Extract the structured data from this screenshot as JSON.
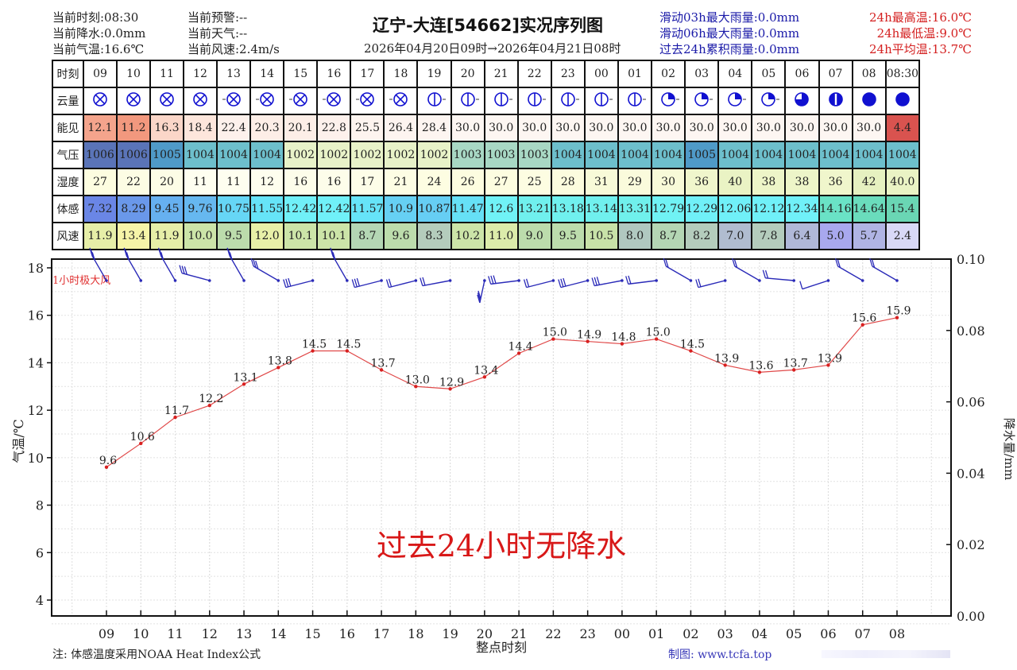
{
  "header": {
    "left": [
      {
        "label": "当前时刻:08:30"
      },
      {
        "label": "当前降水:0.0mm"
      },
      {
        "label": "当前气温:16.6℃"
      }
    ],
    "mid": [
      {
        "label": "当前预警:--"
      },
      {
        "label": "当前天气:--"
      },
      {
        "label": "当前风速:2.4m/s"
      }
    ],
    "title": "辽宁-大连[54662]实况序列图",
    "subtitle": "2026年04月20日09时→2026年04月21日08时",
    "rain_stats": [
      {
        "label": "滑动03h最大雨量:0.0mm"
      },
      {
        "label": "滑动06h最大雨量:0.0mm"
      },
      {
        "label": "过去24h累积雨量:0.0mm"
      }
    ],
    "temp_stats": [
      {
        "label": "24h最高温:16.0℃"
      },
      {
        "label": "24h最低温:9.0℃"
      },
      {
        "label": "24h平均温:13.7℃"
      }
    ]
  },
  "table": {
    "row_labels": [
      "时刻",
      "云量",
      "能见",
      "气压",
      "湿度",
      "体感",
      "风速"
    ],
    "hours": [
      "09",
      "10",
      "11",
      "12",
      "13",
      "14",
      "15",
      "16",
      "17",
      "18",
      "19",
      "20",
      "21",
      "22",
      "23",
      "00",
      "01",
      "02",
      "03",
      "04",
      "05",
      "06",
      "07",
      "08",
      "08:30"
    ],
    "cloud": [
      "overcast-icon",
      "overcast-icon",
      "overcast-icon",
      "overcast-icon",
      "overcast-icon",
      "overcast-icon",
      "overcast-icon",
      "overcast-icon",
      "overcast-icon",
      "overcast-icon",
      "half-cloud-icon",
      "half-cloud-icon",
      "half-cloud-icon",
      "half-cloud-icon",
      "half-cloud-icon",
      "half-cloud-icon",
      "half-cloud-icon",
      "quarter-cloud-icon",
      "quarter-cloud-icon",
      "quarter-cloud-icon",
      "quarter-cloud-icon",
      "three-quarter-cloud-icon",
      "half-filled-cloud-icon",
      "full-cloud-icon",
      "full-cloud-icon"
    ],
    "visibility": [
      "12.1",
      "11.2",
      "16.3",
      "18.4",
      "22.4",
      "20.3",
      "20.1",
      "22.8",
      "25.5",
      "26.4",
      "28.4",
      "30.0",
      "30.0",
      "30.0",
      "30.0",
      "30.0",
      "30.0",
      "30.0",
      "30.0",
      "30.0",
      "30.0",
      "30.0",
      "30.0",
      "30.0",
      "4.4"
    ],
    "visibility_colors": [
      "#f4a48c",
      "#f2987e",
      "#fbd6c8",
      "#fde6dc",
      "#fdf1ec",
      "#fdeee7",
      "#fdeee7",
      "#fdf1ec",
      "#fdf4ef",
      "#fdf4f0",
      "#fdf5f1",
      "#fdf6f2",
      "#fdf6f2",
      "#fdf6f2",
      "#fdf6f2",
      "#fdf6f2",
      "#fdf6f2",
      "#fdf6f2",
      "#fdf6f2",
      "#fdf6f2",
      "#fdf6f2",
      "#fdf6f2",
      "#fdf6f2",
      "#fdf6f2",
      "#d9534f"
    ],
    "pressure": [
      "1006",
      "1006",
      "1005",
      "1004",
      "1004",
      "1004",
      "1002",
      "1002",
      "1002",
      "1002",
      "1002",
      "1003",
      "1003",
      "1003",
      "1004",
      "1004",
      "1004",
      "1004",
      "1005",
      "1004",
      "1004",
      "1004",
      "1004",
      "1004",
      "1004"
    ],
    "pressure_colors": [
      "#5a74b8",
      "#5a74b8",
      "#4f9ac8",
      "#6dbfcc",
      "#6dbfcc",
      "#6dbfcc",
      "#e8f2c8",
      "#e8f2c8",
      "#e8f2c8",
      "#e8f2c8",
      "#e8f2c8",
      "#a8d8c4",
      "#a8d8c4",
      "#a8d8c4",
      "#6dbfcc",
      "#6dbfcc",
      "#6dbfcc",
      "#6dbfcc",
      "#4f9ac8",
      "#6dbfcc",
      "#6dbfcc",
      "#6dbfcc",
      "#6dbfcc",
      "#6dbfcc",
      "#6dbfcc"
    ],
    "humidity": [
      "27",
      "22",
      "20",
      "11",
      "11",
      "12",
      "16",
      "16",
      "17",
      "21",
      "24",
      "26",
      "27",
      "25",
      "28",
      "31",
      "29",
      "30",
      "36",
      "40",
      "38",
      "38",
      "36",
      "42",
      "40.0"
    ],
    "humidity_colors": [
      "#fdfde0",
      "#fdfde4",
      "#fdfde6",
      "#fefef0",
      "#fefef0",
      "#fefeee",
      "#fdfdea",
      "#fdfdea",
      "#fdfde8",
      "#fdfde4",
      "#fdfde2",
      "#fdfde0",
      "#fdfde0",
      "#fdfde2",
      "#fcfcde",
      "#f8fad8",
      "#fafbdc",
      "#f8fad8",
      "#f0f6cc",
      "#eaf3c4",
      "#edf5c8",
      "#edf5c8",
      "#f0f6cc",
      "#e6f1c0",
      "#eaf3c4"
    ],
    "feels_like": [
      "7.32",
      "8.29",
      "9.45",
      "9.76",
      "10.75",
      "11.55",
      "12.42",
      "12.42",
      "11.57",
      "10.9",
      "10.87",
      "11.47",
      "12.6",
      "13.21",
      "13.18",
      "13.14",
      "13.31",
      "12.79",
      "12.29",
      "12.06",
      "12.12",
      "12.34",
      "14.16",
      "14.64",
      "15.4"
    ],
    "feels_like_colors": [
      "#6a86e6",
      "#6a98ea",
      "#66b0f0",
      "#66b8f0",
      "#66d6f6",
      "#66e4f8",
      "#70f0f8",
      "#70f0f8",
      "#66e4f8",
      "#66d0f4",
      "#66cef4",
      "#66e0f6",
      "#70f2f6",
      "#70f0ee",
      "#70f0ee",
      "#70f0ee",
      "#70f0ec",
      "#70f2f4",
      "#70f0f8",
      "#70f0f8",
      "#70f0f8",
      "#70f0f8",
      "#6ae2c6",
      "#6adcbc",
      "#6ad6b4"
    ],
    "wind_speed": [
      "11.9",
      "13.4",
      "11.9",
      "10.0",
      "9.5",
      "12.0",
      "10.1",
      "10.1",
      "8.7",
      "9.6",
      "8.3",
      "10.2",
      "11.0",
      "9.0",
      "9.5",
      "10.5",
      "8.0",
      "8.7",
      "8.2",
      "7.0",
      "7.8",
      "6.4",
      "5.0",
      "5.7",
      "2.4"
    ],
    "wind_speed_colors": [
      "#e6eea8",
      "#f6f4a8",
      "#e6eea8",
      "#cce4a8",
      "#bcdcac",
      "#e8f0a8",
      "#cce4a8",
      "#cce4a8",
      "#b4d6b4",
      "#bcdcac",
      "#b4ccbc",
      "#cce4a8",
      "#dcecaa",
      "#bcdcac",
      "#bcdcac",
      "#c8e2a8",
      "#b0c8c0",
      "#b4d6b4",
      "#b4ccbc",
      "#b0bcd0",
      "#b4ccbc",
      "#b0b8d8",
      "#a8a8ee",
      "#b0b4e4",
      "#d8d8f6"
    ]
  },
  "chart": {
    "wind_label": "1小时极大风",
    "no_rain_text": "过去24小时无降水",
    "ylabel_left": "气温/℃",
    "ylabel_right": "降水量/mm",
    "xlabel": "整点时刻",
    "yticks_left": [
      "18",
      "16",
      "14",
      "12",
      "10",
      "8",
      "6",
      "4"
    ],
    "yticks_right": [
      "0.10",
      "0.08",
      "0.06",
      "0.04",
      "0.02",
      "0.00"
    ],
    "xticks": [
      "09",
      "10",
      "11",
      "12",
      "13",
      "14",
      "15",
      "16",
      "17",
      "18",
      "19",
      "20",
      "21",
      "22",
      "23",
      "00",
      "01",
      "02",
      "03",
      "04",
      "05",
      "06",
      "07",
      "08"
    ],
    "temp_labels": [
      "9.6",
      "10.6",
      "11.7",
      "12.2",
      "13.1",
      "13.8",
      "14.5",
      "14.5",
      "13.7",
      "13.0",
      "12.9",
      "13.4",
      "14.4",
      "15.0",
      "14.9",
      "14.8",
      "15.0",
      "14.5",
      "13.9",
      "13.6",
      "13.7",
      "13.9",
      "15.6",
      "15.9"
    ]
  },
  "footer": {
    "note": "注: 体感温度采用NOAA Heat Index公式",
    "credit": "制图: www.tcfa.top"
  },
  "chart_data": {
    "type": "line",
    "title": "辽宁-大连[54662]实况序列图",
    "subtitle": "2026年04月20日09时→2026年04月21日08时",
    "xlabel": "整点时刻",
    "ylabel": "气温/℃",
    "y2label": "降水量/mm",
    "x": [
      "09",
      "10",
      "11",
      "12",
      "13",
      "14",
      "15",
      "16",
      "17",
      "18",
      "19",
      "20",
      "21",
      "22",
      "23",
      "00",
      "01",
      "02",
      "03",
      "04",
      "05",
      "06",
      "07",
      "08"
    ],
    "series": [
      {
        "name": "气温",
        "values": [
          9.6,
          10.6,
          11.7,
          12.2,
          13.1,
          13.8,
          14.5,
          14.5,
          13.7,
          13.0,
          12.9,
          13.4,
          14.4,
          15.0,
          14.9,
          14.8,
          15.0,
          14.5,
          13.9,
          13.6,
          13.7,
          13.9,
          15.6,
          15.9
        ],
        "color": "#e03030"
      },
      {
        "name": "降水量",
        "values": [
          0,
          0,
          0,
          0,
          0,
          0,
          0,
          0,
          0,
          0,
          0,
          0,
          0,
          0,
          0,
          0,
          0,
          0,
          0,
          0,
          0,
          0,
          0,
          0
        ],
        "axis": "right"
      }
    ],
    "ylim": [
      3.3,
      18.4
    ],
    "y2lim": [
      0.0,
      0.1
    ],
    "grid": true,
    "annotations": [
      "过去24小时无降水",
      "1小时极大风"
    ]
  }
}
